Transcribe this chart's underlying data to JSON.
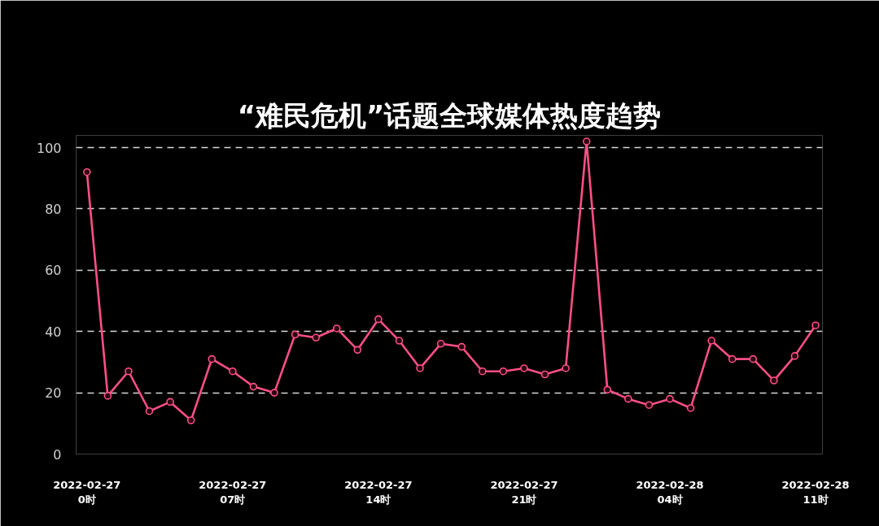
{
  "chart_data": {
    "type": "line",
    "title": "“难民危机”话题全球媒体热度趋势",
    "categories": [
      "2022-02-27\n0时",
      null,
      null,
      null,
      null,
      null,
      null,
      "2022-02-27\n07时",
      null,
      null,
      null,
      null,
      null,
      null,
      "2022-02-27\n14时",
      null,
      null,
      null,
      null,
      null,
      null,
      "2022-02-27\n21时",
      null,
      null,
      null,
      null,
      null,
      null,
      "2022-02-28\n04时",
      null,
      null,
      null,
      null,
      null,
      null,
      "2022-02-28\n11时"
    ],
    "values": [
      92,
      19,
      27,
      14,
      17,
      11,
      31,
      27,
      22,
      20,
      39,
      38,
      41,
      34,
      44,
      37,
      28,
      36,
      35,
      27,
      27,
      28,
      26,
      28,
      102,
      21,
      18,
      16,
      18,
      15,
      37,
      31,
      31,
      24,
      32,
      42
    ],
    "color": "#ff4f86",
    "ylim": [
      0,
      104
    ],
    "yticks": [
      0,
      20,
      40,
      60,
      80,
      100
    ],
    "grid": "y",
    "marker": "circle",
    "line_style": "solid"
  }
}
